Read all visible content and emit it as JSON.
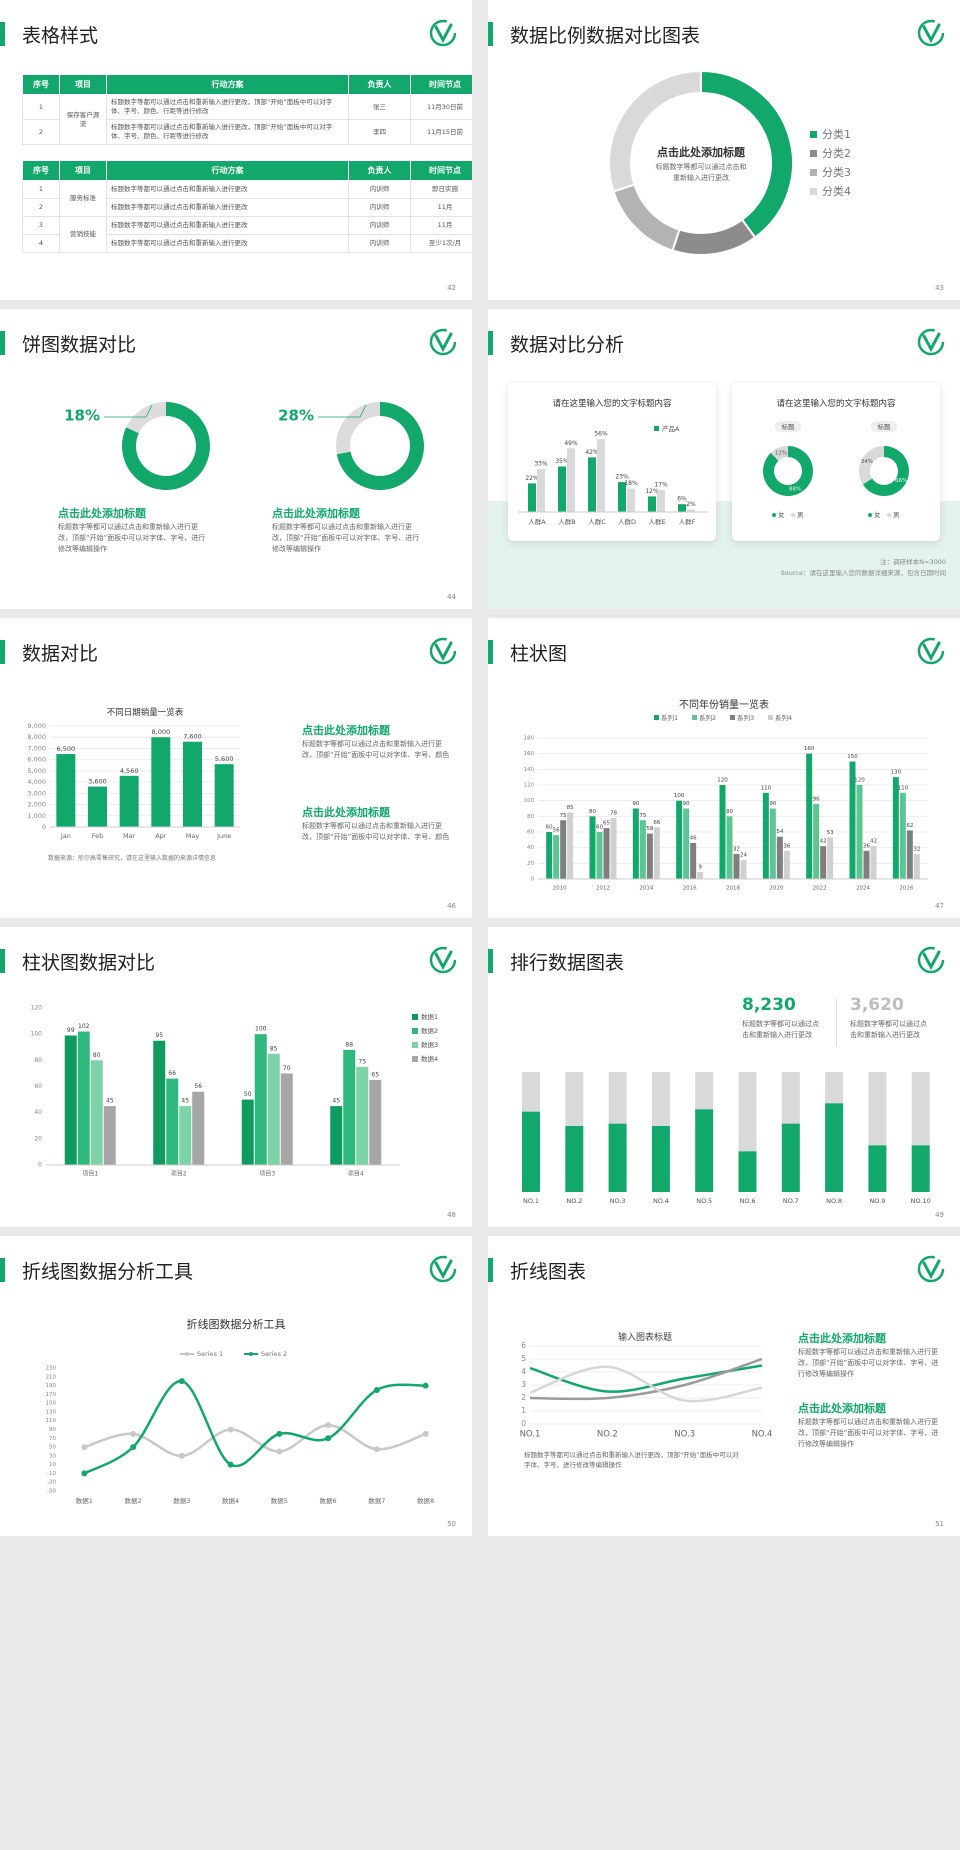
{
  "slides": [
    {
      "title": "表格样式",
      "page": 42,
      "tables": [
        {
          "header": [
            "序号",
            "项目",
            "行动方案",
            "负责人",
            "时间节点"
          ],
          "groups": [
            {
              "project": "保存客户源流",
              "rows": [
                [
                  "1",
                  "标题数字等都可以通过点击和重新输入进行更改，顶部“开始”面板中可以对字体、字号、颜色、行距等进行修改",
                  "张三",
                  "11月30日前"
                ],
                [
                  "2",
                  "标题数字等都可以通过点击和重新输入进行更改，顶部“开始”面板中可以对字体、字号、颜色、行距等进行修改",
                  "李四",
                  "11月15日前"
                ]
              ]
            }
          ]
        },
        {
          "header": [
            "序号",
            "项目",
            "行动方案",
            "负责人",
            "时间节点"
          ],
          "groups": [
            {
              "project": "服务标准",
              "rows": [
                [
                  "1",
                  "标题数字等都可以通过点击和重新输入进行更改",
                  "内训师",
                  "即日实施"
                ],
                [
                  "2",
                  "标题数字等都可以通过点击和重新输入进行更改",
                  "内训师",
                  "11月"
                ]
              ]
            },
            {
              "project": "营销技能",
              "rows": [
                [
                  "3",
                  "标题数字等都可以通过点击和重新输入进行更改",
                  "内训师",
                  "11月"
                ],
                [
                  "4",
                  "标题数字等都可以通过点击和重新输入进行更改",
                  "内训师",
                  "至少1次/月"
                ]
              ]
            }
          ]
        }
      ]
    },
    {
      "title": "数据比例数据对比图表",
      "page": 43,
      "chart": {
        "type": "donut",
        "heading": "点击此处添加标题",
        "text": "标题数字等都可以通过点击和重新输入进行更改",
        "categories": [
          "分类1",
          "分类2",
          "分类3",
          "分类4"
        ],
        "values": [
          40,
          15,
          15,
          30
        ],
        "colors": [
          "#13a86b",
          "#8c8c8c",
          "#b3b3b3",
          "#d9d9d9"
        ]
      }
    },
    {
      "title": "饼图数据对比",
      "page": 44,
      "items": [
        {
          "type": "ring",
          "value": 18,
          "value_label": "18%",
          "heading": "点击此处添加标题",
          "text": "标题数字等都可以通过点击和重新输入进行更改，顶部“开始”面板中可以对字体、字号、进行修改等编辑操作"
        },
        {
          "type": "ring",
          "value": 28,
          "value_label": "28%",
          "heading": "点击此处添加标题",
          "text": "标题数字等都可以通过点击和重新输入进行更改，顶部“开始”面板中可以对字体、字号、进行修改等编辑操作"
        }
      ]
    },
    {
      "title": "数据对比分析",
      "page": 45,
      "bar_card": {
        "type": "bar",
        "title": "请在这里输入您的文字标题内容",
        "categories": [
          "人群A",
          "人群B",
          "人群C",
          "人群D",
          "人群E",
          "人群F"
        ],
        "series": [
          {
            "name": "产品A",
            "color": "#13a86b",
            "values": [
              22,
              35,
              42,
              23,
              12,
              6
            ],
            "value_labels": [
              "22%",
              "35%",
              "42%",
              "23%",
              "12%",
              "6%"
            ]
          },
          {
            "color": "#d9d9d9",
            "values": [
              33,
              49,
              56,
              18,
              17,
              2
            ],
            "value_labels": [
              "33%",
              "49%",
              "56%",
              "18%",
              "17%",
              "2%"
            ]
          }
        ]
      },
      "donut_card": {
        "type": "donut",
        "title": "请在这里输入您的文字标题内容",
        "legend": [
          "女",
          "男"
        ],
        "colors": [
          "#13a86b",
          "#d9d9d9"
        ],
        "donuts": [
          {
            "label": "标题",
            "values": [
              88,
              12
            ],
            "value_labels": [
              "88%",
              "12%"
            ]
          },
          {
            "label": "标题",
            "values": [
              66,
              34
            ],
            "value_labels": [
              "66%",
              "34%"
            ]
          }
        ]
      },
      "note": "注：调研样本N=3000",
      "source": "Source：请在这里输入您的数据详细来源，包含日期时间"
    },
    {
      "title": "数据对比",
      "page": 46,
      "chart": {
        "type": "bar",
        "title": "不同日期销量一览表",
        "categories": [
          "Jan",
          "Feb",
          "Mar",
          "Apr",
          "May",
          "June"
        ],
        "values": [
          6500,
          3600,
          4560,
          8000,
          7600,
          5600
        ],
        "value_labels": [
          "6,500",
          "3,600",
          "4,560",
          "8,000",
          "7,600",
          "5,600"
        ],
        "color": "#13a86b",
        "ylim": [
          0,
          9000
        ],
        "yticks": [
          0,
          {
            "value": 1000,
            "label": "1,000"
          },
          {
            "value": 2000,
            "label": "2,000"
          },
          {
            "value": 3000,
            "label": "3,000"
          },
          {
            "value": 4000,
            "label": "4,000"
          },
          {
            "value": 5000,
            "label": "5,000"
          },
          {
            "value": 6000,
            "label": "6,000"
          },
          {
            "value": 7000,
            "label": "7,000"
          },
          {
            "value": 8000,
            "label": "8,000"
          },
          {
            "value": 9000,
            "label": "9,000"
          }
        ],
        "grid": true,
        "source": "数据来源：彤尔高零售研究，请在这里输入数据的来源详情信息"
      },
      "blocks": [
        {
          "heading": "点击此处添加标题",
          "text": "标题数字等都可以通过点击和重新输入进行更改，顶部“开始”面板中可以对字体、字号、颜色"
        },
        {
          "heading": "点击此处添加标题",
          "text": "标题数字等都可以通过点击和重新输入进行更改，顶部“开始”面板中可以对字体、字号、颜色"
        }
      ]
    },
    {
      "title": "柱状图",
      "page": 47,
      "chart": {
        "type": "bar",
        "title": "不同年份销量一览表",
        "categories": [
          "2010",
          "2012",
          "2014",
          "2016",
          "2018",
          "2020",
          "2022",
          "2024",
          "2026"
        ],
        "series": [
          {
            "name": "系列1",
            "color": "#13a86b",
            "values": [
              60,
              80,
              90,
              100,
              120,
              110,
              160,
              150,
              130
            ]
          },
          {
            "name": "系列2",
            "color": "#5cc593",
            "values": [
              56,
              60,
              75,
              90,
              80,
              90,
              96,
              120,
              110
            ]
          },
          {
            "name": "系列3",
            "color": "#7f7f7f",
            "values": [
              75,
              65,
              58,
              46,
              32,
              54,
              42,
              36,
              62
            ]
          },
          {
            "name": "系列4",
            "color": "#d0d0d0",
            "values": [
              85,
              78,
              66,
              9,
              24,
              36,
              53,
              42,
              32
            ]
          }
        ],
        "ylim": [
          0,
          180
        ],
        "yticks": [
          0,
          20,
          40,
          60,
          80,
          100,
          120,
          140,
          160,
          180
        ],
        "grid": true
      }
    },
    {
      "title": "柱状图数据对比",
      "page": 48,
      "chart": {
        "type": "bar",
        "categories": [
          "项目1",
          "项目2",
          "项目3",
          "项目4"
        ],
        "series": [
          {
            "name": "数据1",
            "color": "#0f9a60",
            "values": [
              99,
              95,
              50,
              45
            ]
          },
          {
            "name": "数据2",
            "color": "#2fb87d",
            "values": [
              102,
              66,
              100,
              88
            ]
          },
          {
            "name": "数据3",
            "color": "#7dd3a5",
            "values": [
              80,
              45,
              85,
              75
            ]
          },
          {
            "name": "数据4",
            "color": "#a6a6a6",
            "values": [
              45,
              56,
              70,
              65
            ]
          }
        ],
        "ylim": [
          0,
          120
        ],
        "yticks": [
          0,
          20,
          40,
          60,
          80,
          100,
          120
        ],
        "grid": false
      }
    },
    {
      "title": "排行数据图表",
      "page": 49,
      "stats": [
        {
          "value": 8230,
          "value_label": "8,230",
          "text": "标题数字等都可以通过点击和重新输入进行更改"
        },
        {
          "value": 3620,
          "value_label": "3,620",
          "text": "标题数字等都可以通过点击和重新输入进行更改"
        }
      ],
      "chart": {
        "type": "stacked_bar",
        "categories": [
          "NO.1",
          "NO.2",
          "NO.3",
          "NO.4",
          "NO.5",
          "NO.6",
          "NO.7",
          "NO.8",
          "NO.9",
          "NO.10"
        ],
        "series": [
          {
            "color": "#13a86b",
            "values": [
              67,
              55,
              57,
              55,
              69,
              34,
              57,
              74,
              39,
              39
            ]
          },
          {
            "color": "#d9d9d9",
            "values": [
              33,
              45,
              43,
              45,
              31,
              66,
              43,
              26,
              61,
              61
            ]
          }
        ]
      }
    },
    {
      "title": "折线图数据分析工具",
      "page": 50,
      "chart": {
        "type": "line",
        "title": "折线图数据分析工具",
        "categories": [
          "数据1",
          "数据2",
          "数据3",
          "数据4",
          "数据5",
          "数据6",
          "数据7",
          "数据8"
        ],
        "series": [
          {
            "name": "Series 1",
            "color": "#c8c8c8",
            "values": [
              50,
              80,
              30,
              90,
              40,
              100,
              45,
              80
            ]
          },
          {
            "name": "Series 2",
            "color": "#13a86b",
            "values": [
              -10,
              50,
              200,
              10,
              80,
              70,
              180,
              190
            ]
          }
        ],
        "ylim": [
          -50,
          230
        ],
        "yticks": [
          -50,
          -30,
          -10,
          10,
          30,
          50,
          70,
          90,
          110,
          130,
          150,
          170,
          190,
          210,
          230
        ],
        "grid": false
      }
    },
    {
      "title": "折线图表",
      "page": 51,
      "chart": {
        "type": "line",
        "title": "输入图表标题",
        "categories": [
          "NO.1",
          "NO.2",
          "NO.3",
          "NO.4"
        ],
        "series": [
          {
            "color": "#13a86b",
            "values": [
              4.3,
              2.5,
              3.5,
              4.5
            ]
          },
          {
            "color": "#9a9a9a",
            "values": [
              2.0,
              2.0,
              3.0,
              5.0
            ]
          },
          {
            "color": "#d6d6d6",
            "values": [
              2.4,
              4.4,
              1.8,
              2.8
            ]
          }
        ],
        "ylim": [
          0,
          6
        ],
        "yticks": [
          0,
          1,
          2,
          3,
          4,
          5,
          6
        ],
        "grid": true
      },
      "text": "标题数字等都可以通过点击和重新输入进行更改，顶部“开始”面板中可以对字体、字号、进行修改等编辑操作",
      "blocks": [
        {
          "heading": "点击此处添加标题",
          "text": "标题数字等都可以通过点击和重新输入进行更改，顶部“开始”面板中可以对字体、字号、进行修改等编辑操作"
        },
        {
          "heading": "点击此处添加标题",
          "text": "标题数字等都可以通过点击和重新输入进行更改，顶部“开始”面板中可以对字体、字号、进行修改等编辑操作"
        }
      ]
    }
  ]
}
